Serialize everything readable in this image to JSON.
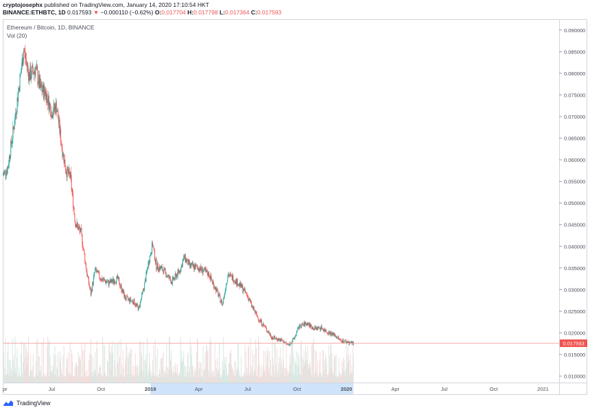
{
  "header": {
    "author": "cryptojosephx",
    "published_text": "published on TradingView.com, January 14, 2020 17:10:54 HKT",
    "symbol": "BINANCE:ETHBTC, 1D",
    "last": "0.017593",
    "change_arrow": "▼",
    "change": "−0.000110 (−0.62%)",
    "o_label": "O:",
    "o_value": "0.017704",
    "h_label": "H:",
    "h_value": "0.017798",
    "l_label": "L:",
    "l_value": "0.017364",
    "c_label": "C:",
    "c_value": "0.017593"
  },
  "legend": {
    "series_title": "Ethereum / Bitcoin, 1D, BINANCE",
    "volume_title": "Vol (20)"
  },
  "footer": {
    "brand": "TradingView",
    "logo_icon": "tradingview-logo-icon"
  },
  "colors": {
    "up": "#26a69a",
    "down": "#ef5350",
    "volume": "#e7ece7",
    "price_line": "#f4a6a4",
    "price_tag": "#ef5350",
    "highlight": "#cfe4fa"
  },
  "chart_data": {
    "type": "candlestick",
    "x_ticks": [
      "pr",
      "Jul",
      "Oct",
      "2019",
      "Apr",
      "Jul",
      "Oct",
      "2020",
      "Apr",
      "Jul",
      "Oct",
      "2021"
    ],
    "y_ticks": [
      "0.090000",
      "0.085000",
      "0.080000",
      "0.075000",
      "0.070000",
      "0.065000",
      "0.060000",
      "0.055000",
      "0.050000",
      "0.045000",
      "0.040000",
      "0.035000",
      "0.030000",
      "0.025000",
      "0.020000",
      "0.015000",
      "0.010000"
    ],
    "ylim": [
      0.0085,
      0.0925
    ],
    "xlim": [
      "2018-04-01",
      "2021-01-31"
    ],
    "last_price": "0.017593",
    "price_path": [
      [
        "2018-04-01",
        0.0565
      ],
      [
        "2018-04-10",
        0.058
      ],
      [
        "2018-04-22",
        0.068
      ],
      [
        "2018-05-05",
        0.0805
      ],
      [
        "2018-05-10",
        0.0855
      ],
      [
        "2018-05-20",
        0.0795
      ],
      [
        "2018-06-01",
        0.081
      ],
      [
        "2018-06-10",
        0.0765
      ],
      [
        "2018-06-20",
        0.0755
      ],
      [
        "2018-07-01",
        0.071
      ],
      [
        "2018-07-10",
        0.0725
      ],
      [
        "2018-07-20",
        0.063
      ],
      [
        "2018-07-28",
        0.0575
      ],
      [
        "2018-08-05",
        0.056
      ],
      [
        "2018-08-14",
        0.0455
      ],
      [
        "2018-08-25",
        0.043
      ],
      [
        "2018-09-05",
        0.0335
      ],
      [
        "2018-09-12",
        0.029
      ],
      [
        "2018-09-20",
        0.0345
      ],
      [
        "2018-10-01",
        0.0325
      ],
      [
        "2018-10-15",
        0.0315
      ],
      [
        "2018-11-01",
        0.0325
      ],
      [
        "2018-11-15",
        0.028
      ],
      [
        "2018-12-01",
        0.0272
      ],
      [
        "2018-12-10",
        0.0255
      ],
      [
        "2018-12-20",
        0.0305
      ],
      [
        "2018-12-28",
        0.036
      ],
      [
        "2019-01-05",
        0.0405
      ],
      [
        "2019-01-12",
        0.0355
      ],
      [
        "2019-01-25",
        0.0345
      ],
      [
        "2019-02-10",
        0.0318
      ],
      [
        "2019-02-25",
        0.0345
      ],
      [
        "2019-03-05",
        0.0375
      ],
      [
        "2019-03-15",
        0.0355
      ],
      [
        "2019-04-01",
        0.035
      ],
      [
        "2019-04-20",
        0.0335
      ],
      [
        "2019-05-05",
        0.0295
      ],
      [
        "2019-05-15",
        0.0265
      ],
      [
        "2019-05-25",
        0.0335
      ],
      [
        "2019-06-05",
        0.0325
      ],
      [
        "2019-06-20",
        0.0305
      ],
      [
        "2019-07-01",
        0.0285
      ],
      [
        "2019-07-10",
        0.0258
      ],
      [
        "2019-07-20",
        0.0235
      ],
      [
        "2019-08-01",
        0.0215
      ],
      [
        "2019-08-15",
        0.019
      ],
      [
        "2019-09-01",
        0.0183
      ],
      [
        "2019-09-15",
        0.0172
      ],
      [
        "2019-09-25",
        0.0185
      ],
      [
        "2019-10-05",
        0.0215
      ],
      [
        "2019-10-20",
        0.0222
      ],
      [
        "2019-11-01",
        0.021
      ],
      [
        "2019-11-15",
        0.0212
      ],
      [
        "2019-11-25",
        0.0203
      ],
      [
        "2019-12-10",
        0.0195
      ],
      [
        "2019-12-20",
        0.0183
      ],
      [
        "2020-01-01",
        0.0179
      ],
      [
        "2020-01-14",
        0.017593
      ]
    ]
  }
}
